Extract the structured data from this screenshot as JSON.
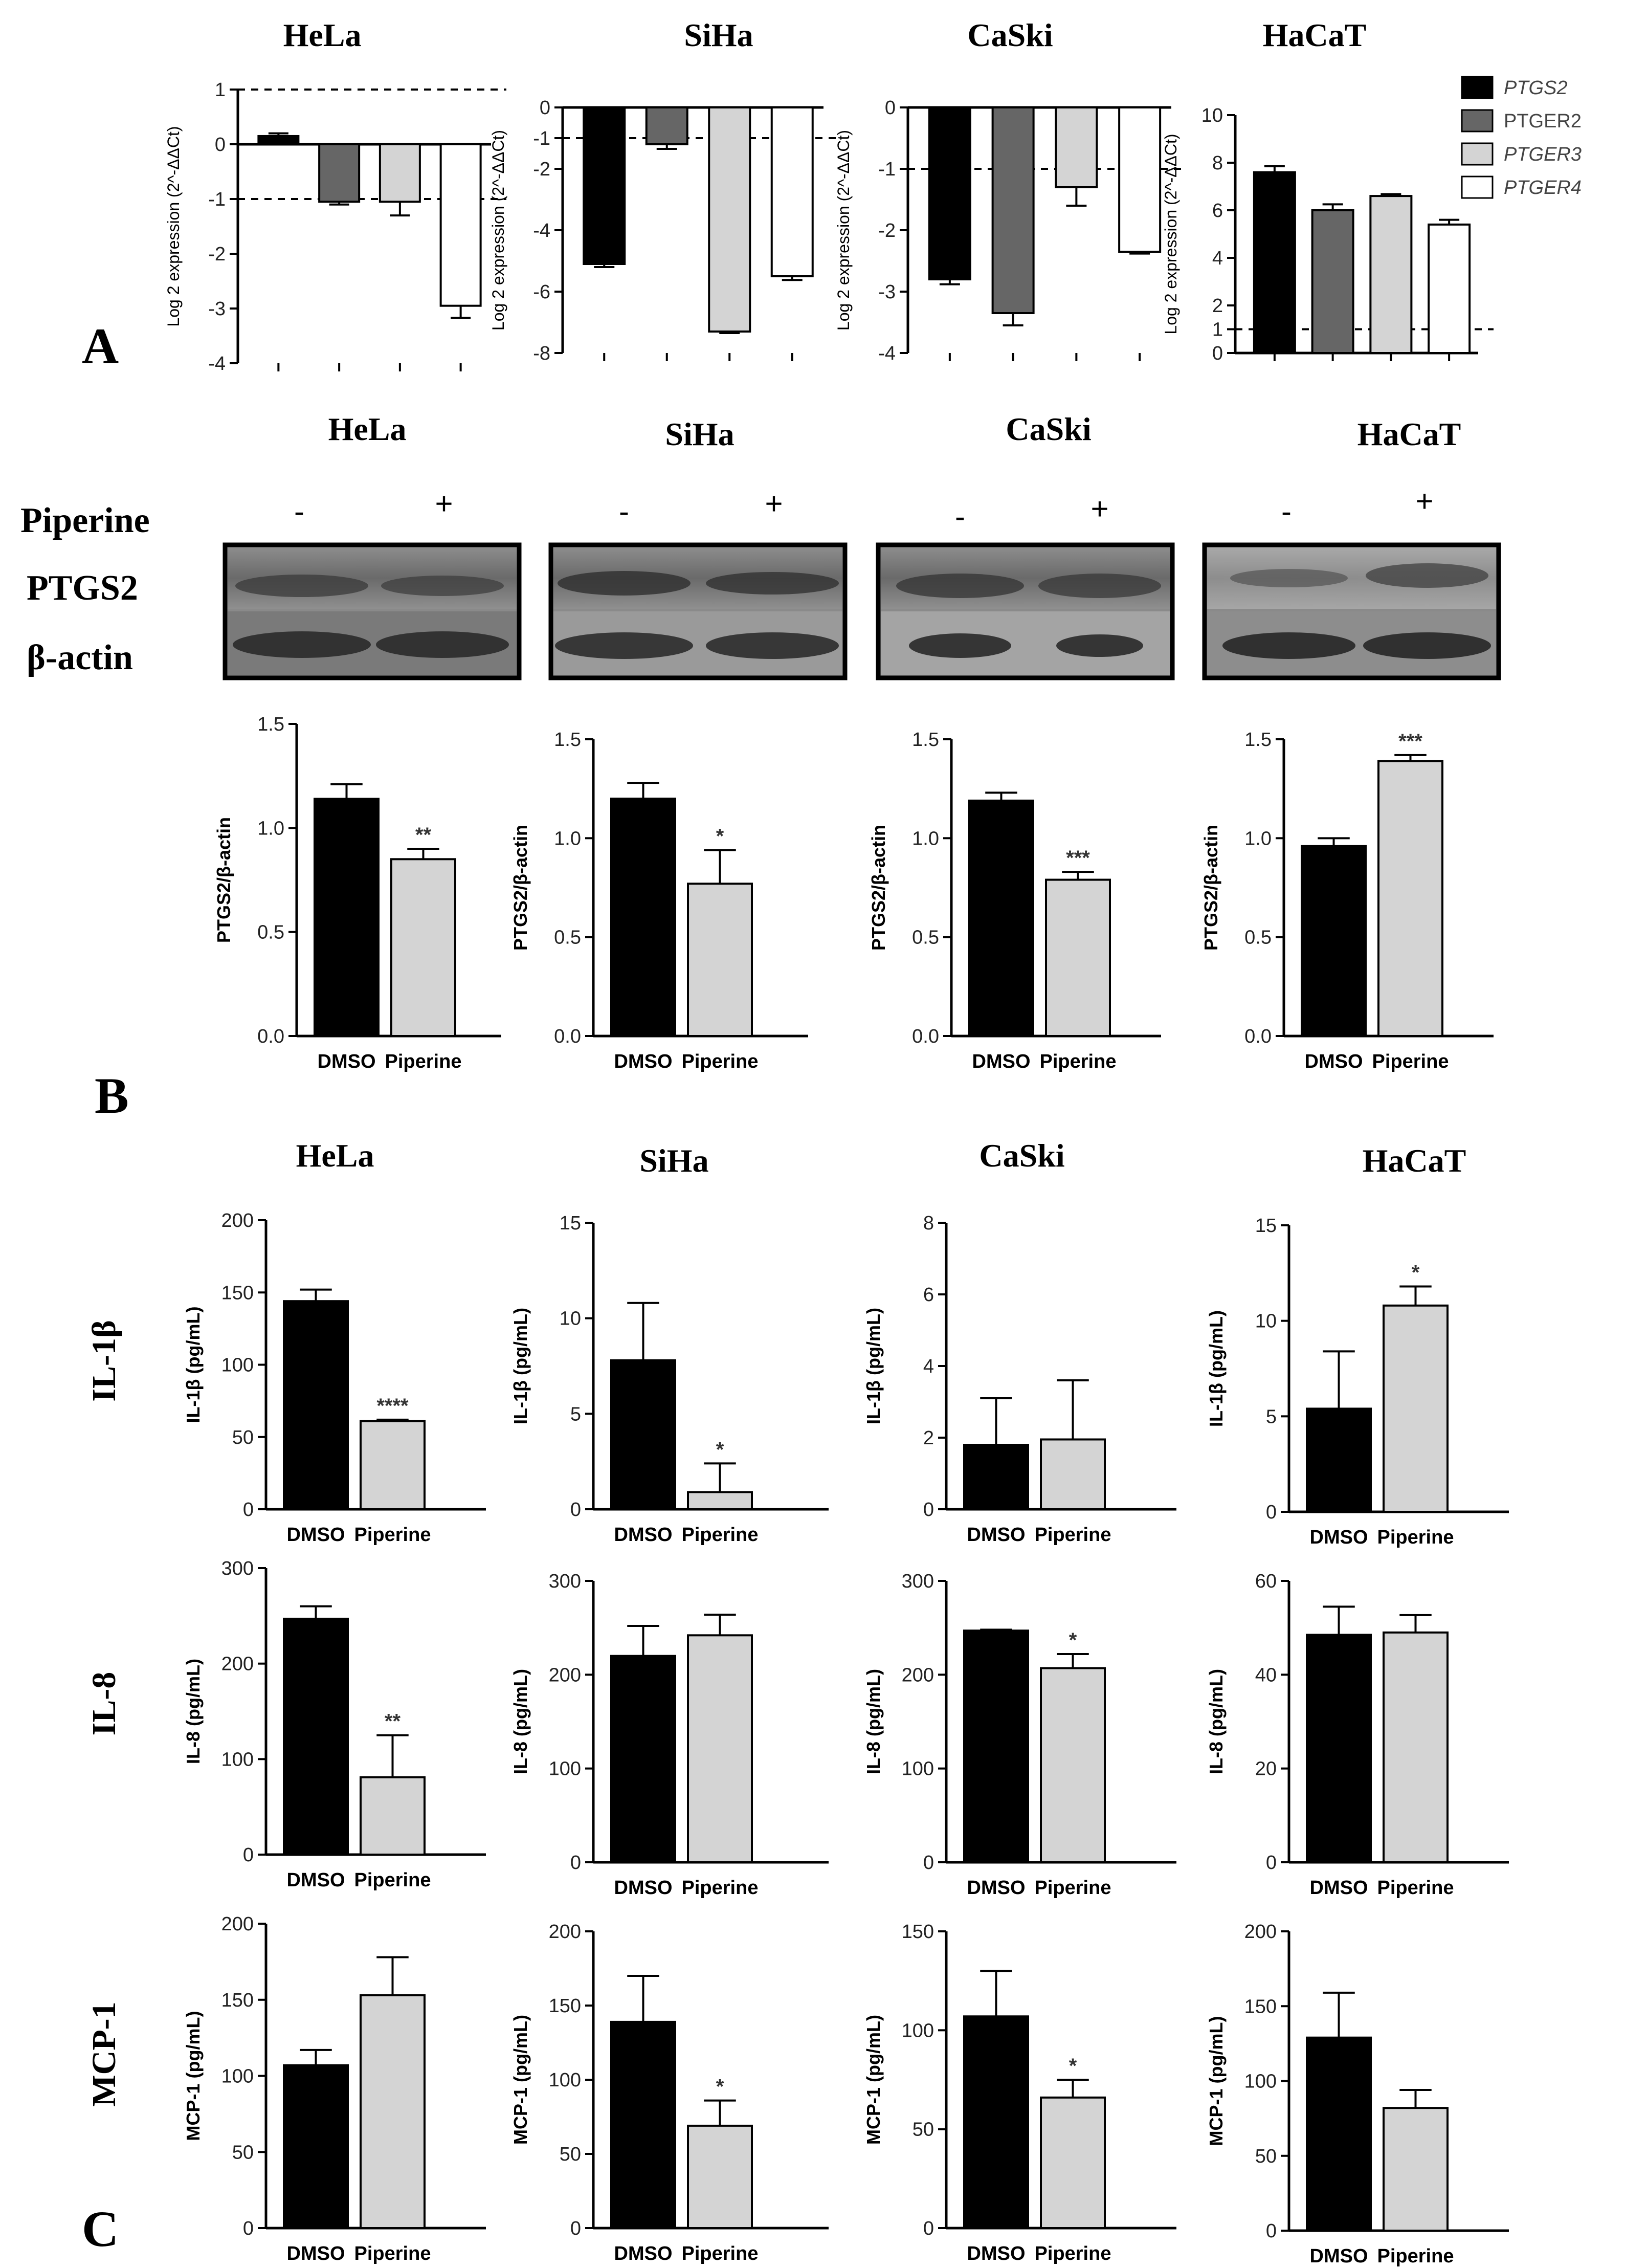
{
  "panel_letters": [
    "A",
    "B",
    "C"
  ],
  "cell_lines": [
    "HeLa",
    "SiHa",
    "CaSki",
    "HaCaT"
  ],
  "western": {
    "treatment_label": "Piperine",
    "minus": "-",
    "plus": "+",
    "rows": [
      "PTGS2",
      "β-actin"
    ]
  },
  "row_labels_c": [
    "IL-1β",
    "IL-8",
    "MCP-1"
  ],
  "categories": [
    "DMSO",
    "Piperine"
  ],
  "colors": {
    "black": "#000000",
    "dark_gray": "#666666",
    "light_gray": "#d4d4d4",
    "white": "#ffffff"
  },
  "chart_data": [
    {
      "type": "bar",
      "title": "HeLa",
      "ylabel": "Log 2 expression (2^-ΔΔCt)",
      "ylim": [
        -4,
        1
      ],
      "yticks": [
        -4,
        -3,
        -2,
        -1,
        0,
        1
      ],
      "ref_lines": [
        1,
        -1
      ],
      "categories": [
        "PTGS2",
        "PTGER2",
        "PTGER3",
        "PTGER4"
      ],
      "values": [
        0.15,
        -1.05,
        -1.05,
        -2.95
      ],
      "errors": [
        0.05,
        0.05,
        0.25,
        0.22
      ],
      "legend": [
        {
          "name": "PTGS2",
          "color": "#000000"
        },
        {
          "name": "PTGER2",
          "color": "#666666"
        },
        {
          "name": "PTGER3",
          "color": "#d4d4d4"
        },
        {
          "name": "PTGER4",
          "color": "#ffffff"
        }
      ]
    },
    {
      "type": "bar",
      "title": "SiHa",
      "ylabel": "Log 2 expression (2^-ΔΔCt)",
      "ylim": [
        -8,
        0
      ],
      "yticks": [
        -8,
        -6,
        -4,
        -2,
        -1,
        0
      ],
      "ref_lines": [
        -1
      ],
      "categories": [
        "PTGS2",
        "PTGER2",
        "PTGER3",
        "PTGER4"
      ],
      "values": [
        -5.1,
        -1.2,
        -7.3,
        -5.5
      ],
      "errors": [
        0.1,
        0.15,
        0.05,
        0.12
      ]
    },
    {
      "type": "bar",
      "title": "CaSki",
      "ylabel": "Log 2 expression (2^-ΔΔCt)",
      "ylim": [
        -4,
        0
      ],
      "yticks": [
        -4,
        -3,
        -2,
        -1,
        0
      ],
      "ref_lines": [
        -1
      ],
      "categories": [
        "PTGS2",
        "PTGER2",
        "PTGER3",
        "PTGER4"
      ],
      "values": [
        -2.8,
        -3.35,
        -1.3,
        -2.35
      ],
      "errors": [
        0.08,
        0.2,
        0.3,
        0.03
      ]
    },
    {
      "type": "bar",
      "title": "HaCaT",
      "ylabel": "Log 2 expression (2^-ΔΔCt)",
      "ylim": [
        0,
        10
      ],
      "yticks": [
        0,
        1,
        2,
        4,
        6,
        8,
        10
      ],
      "ref_lines": [
        1
      ],
      "categories": [
        "PTGS2",
        "PTGER2",
        "PTGER3",
        "PTGER4"
      ],
      "values": [
        7.6,
        6.0,
        6.6,
        5.4
      ],
      "errors": [
        0.25,
        0.25,
        0.08,
        0.2
      ]
    },
    {
      "type": "bar",
      "ylabel": "PTGS2/β-actin",
      "ylim": [
        0,
        1.5
      ],
      "yticks": [
        0.0,
        0.5,
        1.0,
        1.5
      ],
      "categories": [
        "DMSO",
        "Piperine"
      ],
      "values": [
        1.14,
        0.85
      ],
      "errors": [
        0.07,
        0.05
      ],
      "significance": [
        "",
        "**"
      ]
    },
    {
      "type": "bar",
      "ylabel": "PTGS2/β-actin",
      "ylim": [
        0,
        1.5
      ],
      "yticks": [
        0.0,
        0.5,
        1.0,
        1.5
      ],
      "categories": [
        "DMSO",
        "Piperine"
      ],
      "values": [
        1.2,
        0.77
      ],
      "errors": [
        0.08,
        0.17
      ],
      "significance": [
        "",
        "*"
      ]
    },
    {
      "type": "bar",
      "ylabel": "PTGS2/β-actin",
      "ylim": [
        0,
        1.5
      ],
      "yticks": [
        0.0,
        0.5,
        1.0,
        1.5
      ],
      "categories": [
        "DMSO",
        "Piperine"
      ],
      "values": [
        1.19,
        0.79
      ],
      "errors": [
        0.04,
        0.04
      ],
      "significance": [
        "",
        "***"
      ]
    },
    {
      "type": "bar",
      "ylabel": "PTGS2/β-actin",
      "ylim": [
        0,
        1.5
      ],
      "yticks": [
        0.0,
        0.5,
        1.0,
        1.5
      ],
      "categories": [
        "DMSO",
        "Piperine"
      ],
      "values": [
        0.96,
        1.39
      ],
      "errors": [
        0.04,
        0.03
      ],
      "significance": [
        "",
        "***"
      ]
    },
    {
      "type": "bar",
      "ylabel": "IL-1β (pg/mL)",
      "ylim": [
        0,
        200
      ],
      "yticks": [
        0,
        50,
        100,
        150,
        200
      ],
      "categories": [
        "DMSO",
        "Piperine"
      ],
      "values": [
        144,
        61
      ],
      "errors": [
        8,
        1
      ],
      "significance": [
        "",
        "****"
      ]
    },
    {
      "type": "bar",
      "ylabel": "IL-1β (pg/mL)",
      "ylim": [
        0,
        15
      ],
      "yticks": [
        0,
        5,
        10,
        15
      ],
      "categories": [
        "DMSO",
        "Piperine"
      ],
      "values": [
        7.8,
        0.9
      ],
      "errors": [
        3.0,
        1.5
      ],
      "significance": [
        "",
        "*"
      ]
    },
    {
      "type": "bar",
      "ylabel": "IL-1β (pg/mL)",
      "ylim": [
        0,
        8
      ],
      "yticks": [
        0,
        2,
        4,
        6,
        8
      ],
      "categories": [
        "DMSO",
        "Piperine"
      ],
      "values": [
        1.8,
        1.95
      ],
      "errors": [
        1.3,
        1.65
      ],
      "significance": [
        "",
        ""
      ]
    },
    {
      "type": "bar",
      "ylabel": "IL-1β (pg/mL)",
      "ylim": [
        0,
        15
      ],
      "yticks": [
        0,
        5,
        10,
        15
      ],
      "categories": [
        "DMSO",
        "Piperine"
      ],
      "values": [
        5.4,
        10.8
      ],
      "errors": [
        3.0,
        1.0
      ],
      "significance": [
        "",
        "*"
      ]
    },
    {
      "type": "bar",
      "ylabel": "IL-8 (pg/mL)",
      "ylim": [
        0,
        300
      ],
      "yticks": [
        0,
        100,
        200,
        300
      ],
      "categories": [
        "DMSO",
        "Piperine"
      ],
      "values": [
        247,
        81
      ],
      "errors": [
        13,
        44
      ],
      "significance": [
        "",
        "**"
      ]
    },
    {
      "type": "bar",
      "ylabel": "IL-8 (pg/mL)",
      "ylim": [
        0,
        300
      ],
      "yticks": [
        0,
        100,
        200,
        300
      ],
      "categories": [
        "DMSO",
        "Piperine"
      ],
      "values": [
        220,
        242
      ],
      "errors": [
        32,
        22
      ],
      "significance": [
        "",
        ""
      ]
    },
    {
      "type": "bar",
      "ylabel": "IL-8 (pg/mL)",
      "ylim": [
        0,
        300
      ],
      "yticks": [
        0,
        100,
        200,
        300
      ],
      "categories": [
        "DMSO",
        "Piperine"
      ],
      "values": [
        247,
        207
      ],
      "errors": [
        1,
        15
      ],
      "significance": [
        "",
        "*"
      ]
    },
    {
      "type": "bar",
      "ylabel": "IL-8 (pg/mL)",
      "ylim": [
        0,
        60
      ],
      "yticks": [
        0,
        20,
        40,
        60
      ],
      "categories": [
        "DMSO",
        "Piperine"
      ],
      "values": [
        48.5,
        49
      ],
      "errors": [
        6,
        3.7
      ],
      "significance": [
        "",
        ""
      ]
    },
    {
      "type": "bar",
      "ylabel": "MCP-1 (pg/mL)",
      "ylim": [
        0,
        200
      ],
      "yticks": [
        0,
        50,
        100,
        150,
        200
      ],
      "categories": [
        "DMSO",
        "Piperine"
      ],
      "values": [
        107,
        153
      ],
      "errors": [
        10,
        25
      ],
      "significance": [
        "",
        ""
      ]
    },
    {
      "type": "bar",
      "ylabel": "MCP-1 (pg/mL)",
      "ylim": [
        0,
        200
      ],
      "yticks": [
        0,
        50,
        100,
        150,
        200
      ],
      "categories": [
        "DMSO",
        "Piperine"
      ],
      "values": [
        139,
        69
      ],
      "errors": [
        31,
        17
      ],
      "significance": [
        "",
        "*"
      ]
    },
    {
      "type": "bar",
      "ylabel": "MCP-1 (pg/mL)",
      "ylim": [
        0,
        150
      ],
      "yticks": [
        0,
        50,
        100,
        150
      ],
      "categories": [
        "DMSO",
        "Piperine"
      ],
      "values": [
        107,
        66
      ],
      "errors": [
        23,
        9
      ],
      "significance": [
        "",
        "*"
      ]
    },
    {
      "type": "bar",
      "ylabel": "MCP-1 (pg/mL)",
      "ylim": [
        0,
        200
      ],
      "yticks": [
        0,
        50,
        100,
        150,
        200
      ],
      "categories": [
        "DMSO",
        "Piperine"
      ],
      "values": [
        129,
        82
      ],
      "errors": [
        30,
        12
      ],
      "significance": [
        "",
        ""
      ]
    }
  ]
}
